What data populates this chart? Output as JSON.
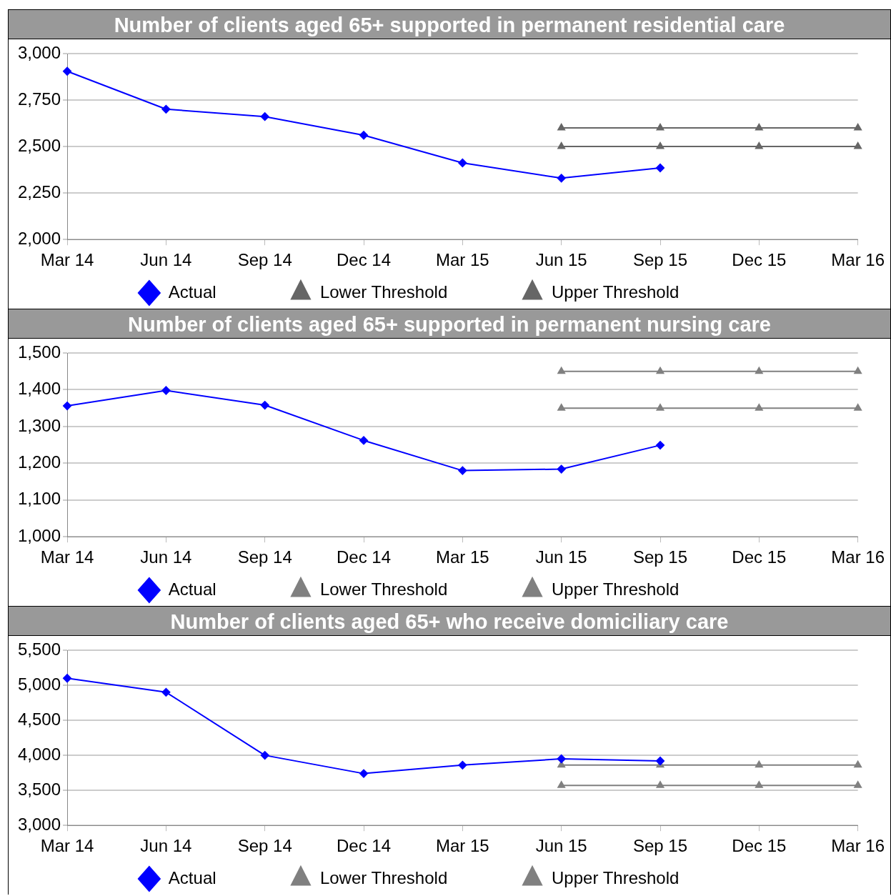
{
  "chart_data": [
    {
      "type": "line",
      "title": "Number of clients aged 65+ supported in permanent residential care",
      "categories": [
        "Mar 14",
        "Jun 14",
        "Sep 14",
        "Dec 14",
        "Mar 15",
        "Jun 15",
        "Sep 15",
        "Dec 15",
        "Mar 16"
      ],
      "ylim": [
        2000,
        3000
      ],
      "yticks": [
        {
          "value": 2000,
          "label": "2,000"
        },
        {
          "value": 2250,
          "label": "2,250"
        },
        {
          "value": 2500,
          "label": "2,500"
        },
        {
          "value": 2750,
          "label": "2,750"
        },
        {
          "value": 3000,
          "label": "3,000"
        }
      ],
      "grid": "y",
      "legend": "bottom",
      "series": [
        {
          "name": "Actual",
          "color": "#0000ff",
          "marker": "diamond",
          "values": [
            2905,
            2701,
            2661,
            2561,
            2412,
            2330,
            2385,
            null,
            null
          ]
        },
        {
          "name": "Lower Threshold",
          "color": "#666666",
          "marker": "triangle",
          "values": [
            null,
            null,
            null,
            null,
            null,
            2500,
            2500,
            2500,
            2500
          ]
        },
        {
          "name": "Upper Threshold",
          "color": "#666666",
          "marker": "triangle",
          "values": [
            null,
            null,
            null,
            null,
            null,
            2600,
            2600,
            2600,
            2600
          ]
        }
      ]
    },
    {
      "type": "line",
      "title": "Number of clients aged 65+ supported in permanent nursing care",
      "categories": [
        "Mar 14",
        "Jun 14",
        "Sep 14",
        "Dec 14",
        "Mar 15",
        "Jun 15",
        "Sep 15",
        "Dec 15",
        "Mar 16"
      ],
      "ylim": [
        1000,
        1500
      ],
      "yticks": [
        {
          "value": 1000,
          "label": "1,000"
        },
        {
          "value": 1100,
          "label": "1,100"
        },
        {
          "value": 1200,
          "label": "1,200"
        },
        {
          "value": 1300,
          "label": "1,300"
        },
        {
          "value": 1400,
          "label": "1,400"
        },
        {
          "value": 1500,
          "label": "1,500"
        }
      ],
      "grid": "y",
      "legend": "bottom",
      "series": [
        {
          "name": "Actual",
          "color": "#0000ff",
          "marker": "diamond",
          "values": [
            1356,
            1398,
            1358,
            1262,
            1180,
            1184,
            1249,
            null,
            null
          ]
        },
        {
          "name": "Lower Threshold",
          "color": "#808080",
          "marker": "triangle",
          "values": [
            null,
            null,
            null,
            null,
            null,
            1350,
            1350,
            1350,
            1350
          ]
        },
        {
          "name": "Upper Threshold",
          "color": "#808080",
          "marker": "triangle",
          "values": [
            null,
            null,
            null,
            null,
            null,
            1450,
            1450,
            1450,
            1450
          ]
        }
      ]
    },
    {
      "type": "line",
      "title": "Number of clients aged 65+ who receive domiciliary care",
      "categories": [
        "Mar 14",
        "Jun 14",
        "Sep 14",
        "Dec 14",
        "Mar 15",
        "Jun 15",
        "Sep 15",
        "Dec 15",
        "Mar 16"
      ],
      "ylim": [
        3000,
        5500
      ],
      "yticks": [
        {
          "value": 3000,
          "label": "3,000"
        },
        {
          "value": 3500,
          "label": "3,500"
        },
        {
          "value": 4000,
          "label": "4,000"
        },
        {
          "value": 4500,
          "label": "4,500"
        },
        {
          "value": 5000,
          "label": "5,000"
        },
        {
          "value": 5500,
          "label": "5,500"
        }
      ],
      "grid": "y",
      "legend": "bottom",
      "series": [
        {
          "name": "Actual",
          "color": "#0000ff",
          "marker": "diamond",
          "values": [
            5100,
            4900,
            4000,
            3740,
            3860,
            3950,
            3920,
            null,
            null
          ]
        },
        {
          "name": "Lower Threshold",
          "color": "#808080",
          "marker": "triangle",
          "values": [
            null,
            null,
            null,
            null,
            null,
            3570,
            3570,
            3570,
            3570
          ]
        },
        {
          "name": "Upper Threshold",
          "color": "#808080",
          "marker": "triangle",
          "values": [
            null,
            null,
            null,
            null,
            null,
            3860,
            3860,
            3860,
            3860
          ]
        }
      ]
    }
  ]
}
